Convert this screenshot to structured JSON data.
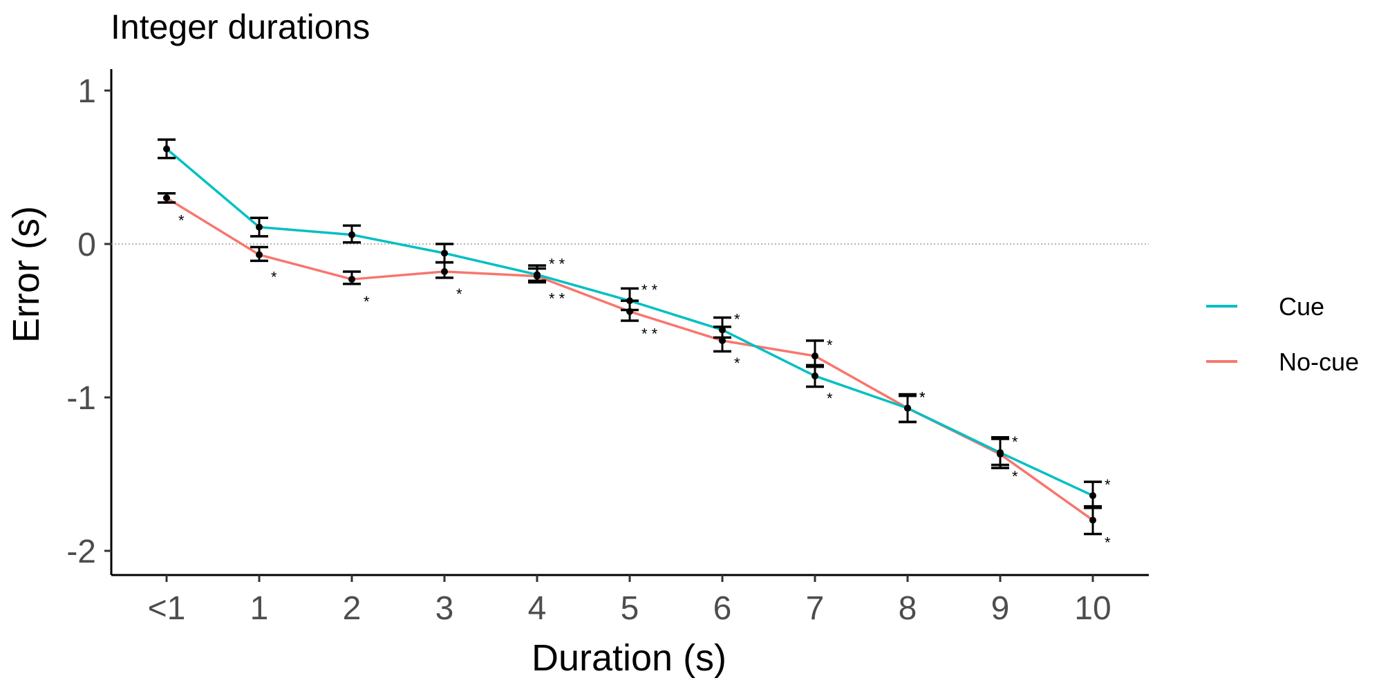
{
  "chart_data": {
    "type": "line",
    "title": "Integer durations",
    "xlabel": "Duration (s)",
    "ylabel": "Error (s)",
    "categories": [
      "<1",
      "1",
      "2",
      "3",
      "4",
      "5",
      "6",
      "7",
      "8",
      "9",
      "10"
    ],
    "ylim": [
      -2.15,
      1.1
    ],
    "yticks": [
      1,
      0,
      -1,
      -2
    ],
    "ytick_labels": [
      "1",
      "0",
      "-1",
      "-2"
    ],
    "reference_line": 0,
    "legend_position": "right",
    "series": [
      {
        "name": "Cue",
        "color": "#00BFC4",
        "values": [
          0.62,
          0.11,
          0.06,
          -0.06,
          -0.2,
          -0.37,
          -0.56,
          -0.86,
          -1.07,
          -1.36,
          -1.64
        ],
        "err_lo": [
          0.56,
          0.05,
          0.01,
          -0.12,
          -0.24,
          -0.43,
          -0.61,
          -0.93,
          -1.16,
          -1.44,
          -1.72
        ],
        "err_hi": [
          0.68,
          0.17,
          0.12,
          0.0,
          -0.14,
          -0.29,
          -0.48,
          -0.79,
          -0.99,
          -1.26,
          -1.55
        ],
        "significance": [
          "",
          "",
          "",
          "",
          "**",
          "**",
          "*",
          "*",
          "*",
          "*",
          "*"
        ]
      },
      {
        "name": "No-cue",
        "color": "#F8766D",
        "values": [
          0.3,
          -0.07,
          -0.23,
          -0.18,
          -0.21,
          -0.44,
          -0.63,
          -0.73,
          -1.07,
          -1.37,
          -1.8
        ],
        "err_lo": [
          0.27,
          -0.11,
          -0.26,
          -0.22,
          -0.25,
          -0.5,
          -0.7,
          -0.8,
          -1.16,
          -1.46,
          -1.89
        ],
        "err_hi": [
          0.33,
          -0.02,
          -0.18,
          -0.12,
          -0.16,
          -0.37,
          -0.54,
          -0.63,
          -0.98,
          -1.27,
          -1.71
        ],
        "significance": [
          "*",
          "*",
          "*",
          "*",
          "**",
          "**",
          "*",
          "*",
          "*",
          "*",
          "*"
        ]
      }
    ]
  }
}
